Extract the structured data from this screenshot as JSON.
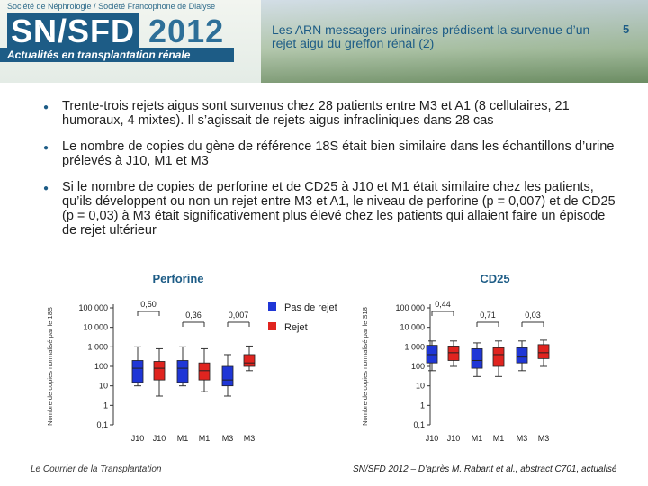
{
  "header": {
    "society": "Société de Néphrologie / Société Francophone de Dialyse",
    "title_sn": "SN/SFD",
    "title_year": "2012",
    "subtitle": "Actualités en transplantation rénale",
    "slide_title": "Les ARN messagers urinaires prédisent la survenue d’un rejet aigu du greffon rénal (2)",
    "page_number": "5"
  },
  "bullets": [
    "Trente-trois rejets aigus sont survenus chez 28 patients entre M3 et A1 (8 cellulaires, 21 humoraux, 4 mixtes). Il s’agissait de rejets aigus infracliniques dans 28 cas",
    "Le nombre de copies du gène de référence 18S était bien similaire dans les échantillons d’urine prélevés à J10, M1 et M3",
    "Si le nombre de copies de perforine et de CD25 à J10 et M1 était similaire chez les patients, qu’ils développent ou non un rejet entre M3 et A1, le niveau de perforine (p = 0,007) et de CD25 (p = 0,03) à M3 était significativement plus élevé chez les patients qui allaient faire un épisode de rejet ultérieur"
  ],
  "legend": {
    "no_reject": "Pas de rejet",
    "reject": "Rejet"
  },
  "colors": {
    "no_reject": "#1f36d6",
    "reject": "#e0241f",
    "brand": "#1d5c86"
  },
  "chart_data": [
    {
      "type": "box",
      "title": "Perforine",
      "ylabel": "Nombre de copies normalisé par le 18S",
      "scale": "log",
      "yticks": [
        "100 000",
        "10 000",
        "1 000",
        "100",
        "10",
        "1",
        "0,1"
      ],
      "ylim": [
        0.1,
        100000
      ],
      "categories": [
        "J10",
        "J10",
        "M1",
        "M1",
        "M3",
        "M3"
      ],
      "pvalues": [
        "0,50",
        "0,36",
        "0,007"
      ],
      "series": [
        {
          "name": "Pas de rejet",
          "boxes": [
            {
              "min": 10,
              "q1": 15,
              "median": 80,
              "q3": 200,
              "max": 1000
            },
            {
              "min": 10,
              "q1": 15,
              "median": 80,
              "q3": 200,
              "max": 1000
            },
            {
              "min": 3,
              "q1": 10,
              "median": 20,
              "q3": 100,
              "max": 400
            }
          ]
        },
        {
          "name": "Rejet",
          "boxes": [
            {
              "min": 3,
              "q1": 20,
              "median": 80,
              "q3": 180,
              "max": 800
            },
            {
              "min": 5,
              "q1": 20,
              "median": 60,
              "q3": 150,
              "max": 800
            },
            {
              "min": 60,
              "q1": 100,
              "median": 150,
              "q3": 400,
              "max": 1100
            }
          ]
        }
      ]
    },
    {
      "type": "box",
      "title": "CD25",
      "ylabel": "Nombre de copies normalisé par le S18",
      "scale": "log",
      "yticks": [
        "100 000",
        "10 000",
        "1 000",
        "100",
        "10",
        "1",
        "0,1"
      ],
      "ylim": [
        0.1,
        100000
      ],
      "categories": [
        "J10",
        "J10",
        "M1",
        "M1",
        "M3",
        "M3"
      ],
      "pvalues": [
        "0,44",
        "0,71",
        "0,03"
      ],
      "series": [
        {
          "name": "Pas de rejet",
          "boxes": [
            {
              "min": 60,
              "q1": 150,
              "median": 400,
              "q3": 1200,
              "max": 2000
            },
            {
              "min": 30,
              "q1": 80,
              "median": 200,
              "q3": 800,
              "max": 1600
            },
            {
              "min": 60,
              "q1": 150,
              "median": 300,
              "q3": 900,
              "max": 2000
            }
          ]
        },
        {
          "name": "Rejet",
          "boxes": [
            {
              "min": 100,
              "q1": 200,
              "median": 500,
              "q3": 1100,
              "max": 2000
            },
            {
              "min": 30,
              "q1": 100,
              "median": 400,
              "q3": 900,
              "max": 2000
            },
            {
              "min": 100,
              "q1": 250,
              "median": 500,
              "q3": 1300,
              "max": 2200
            }
          ]
        }
      ]
    }
  ],
  "footer": {
    "left": "Le Courrier de la Transplantation",
    "right": "SN/SFD 2012 – D’après M. Rabant et al., abstract C701, actualisé"
  }
}
